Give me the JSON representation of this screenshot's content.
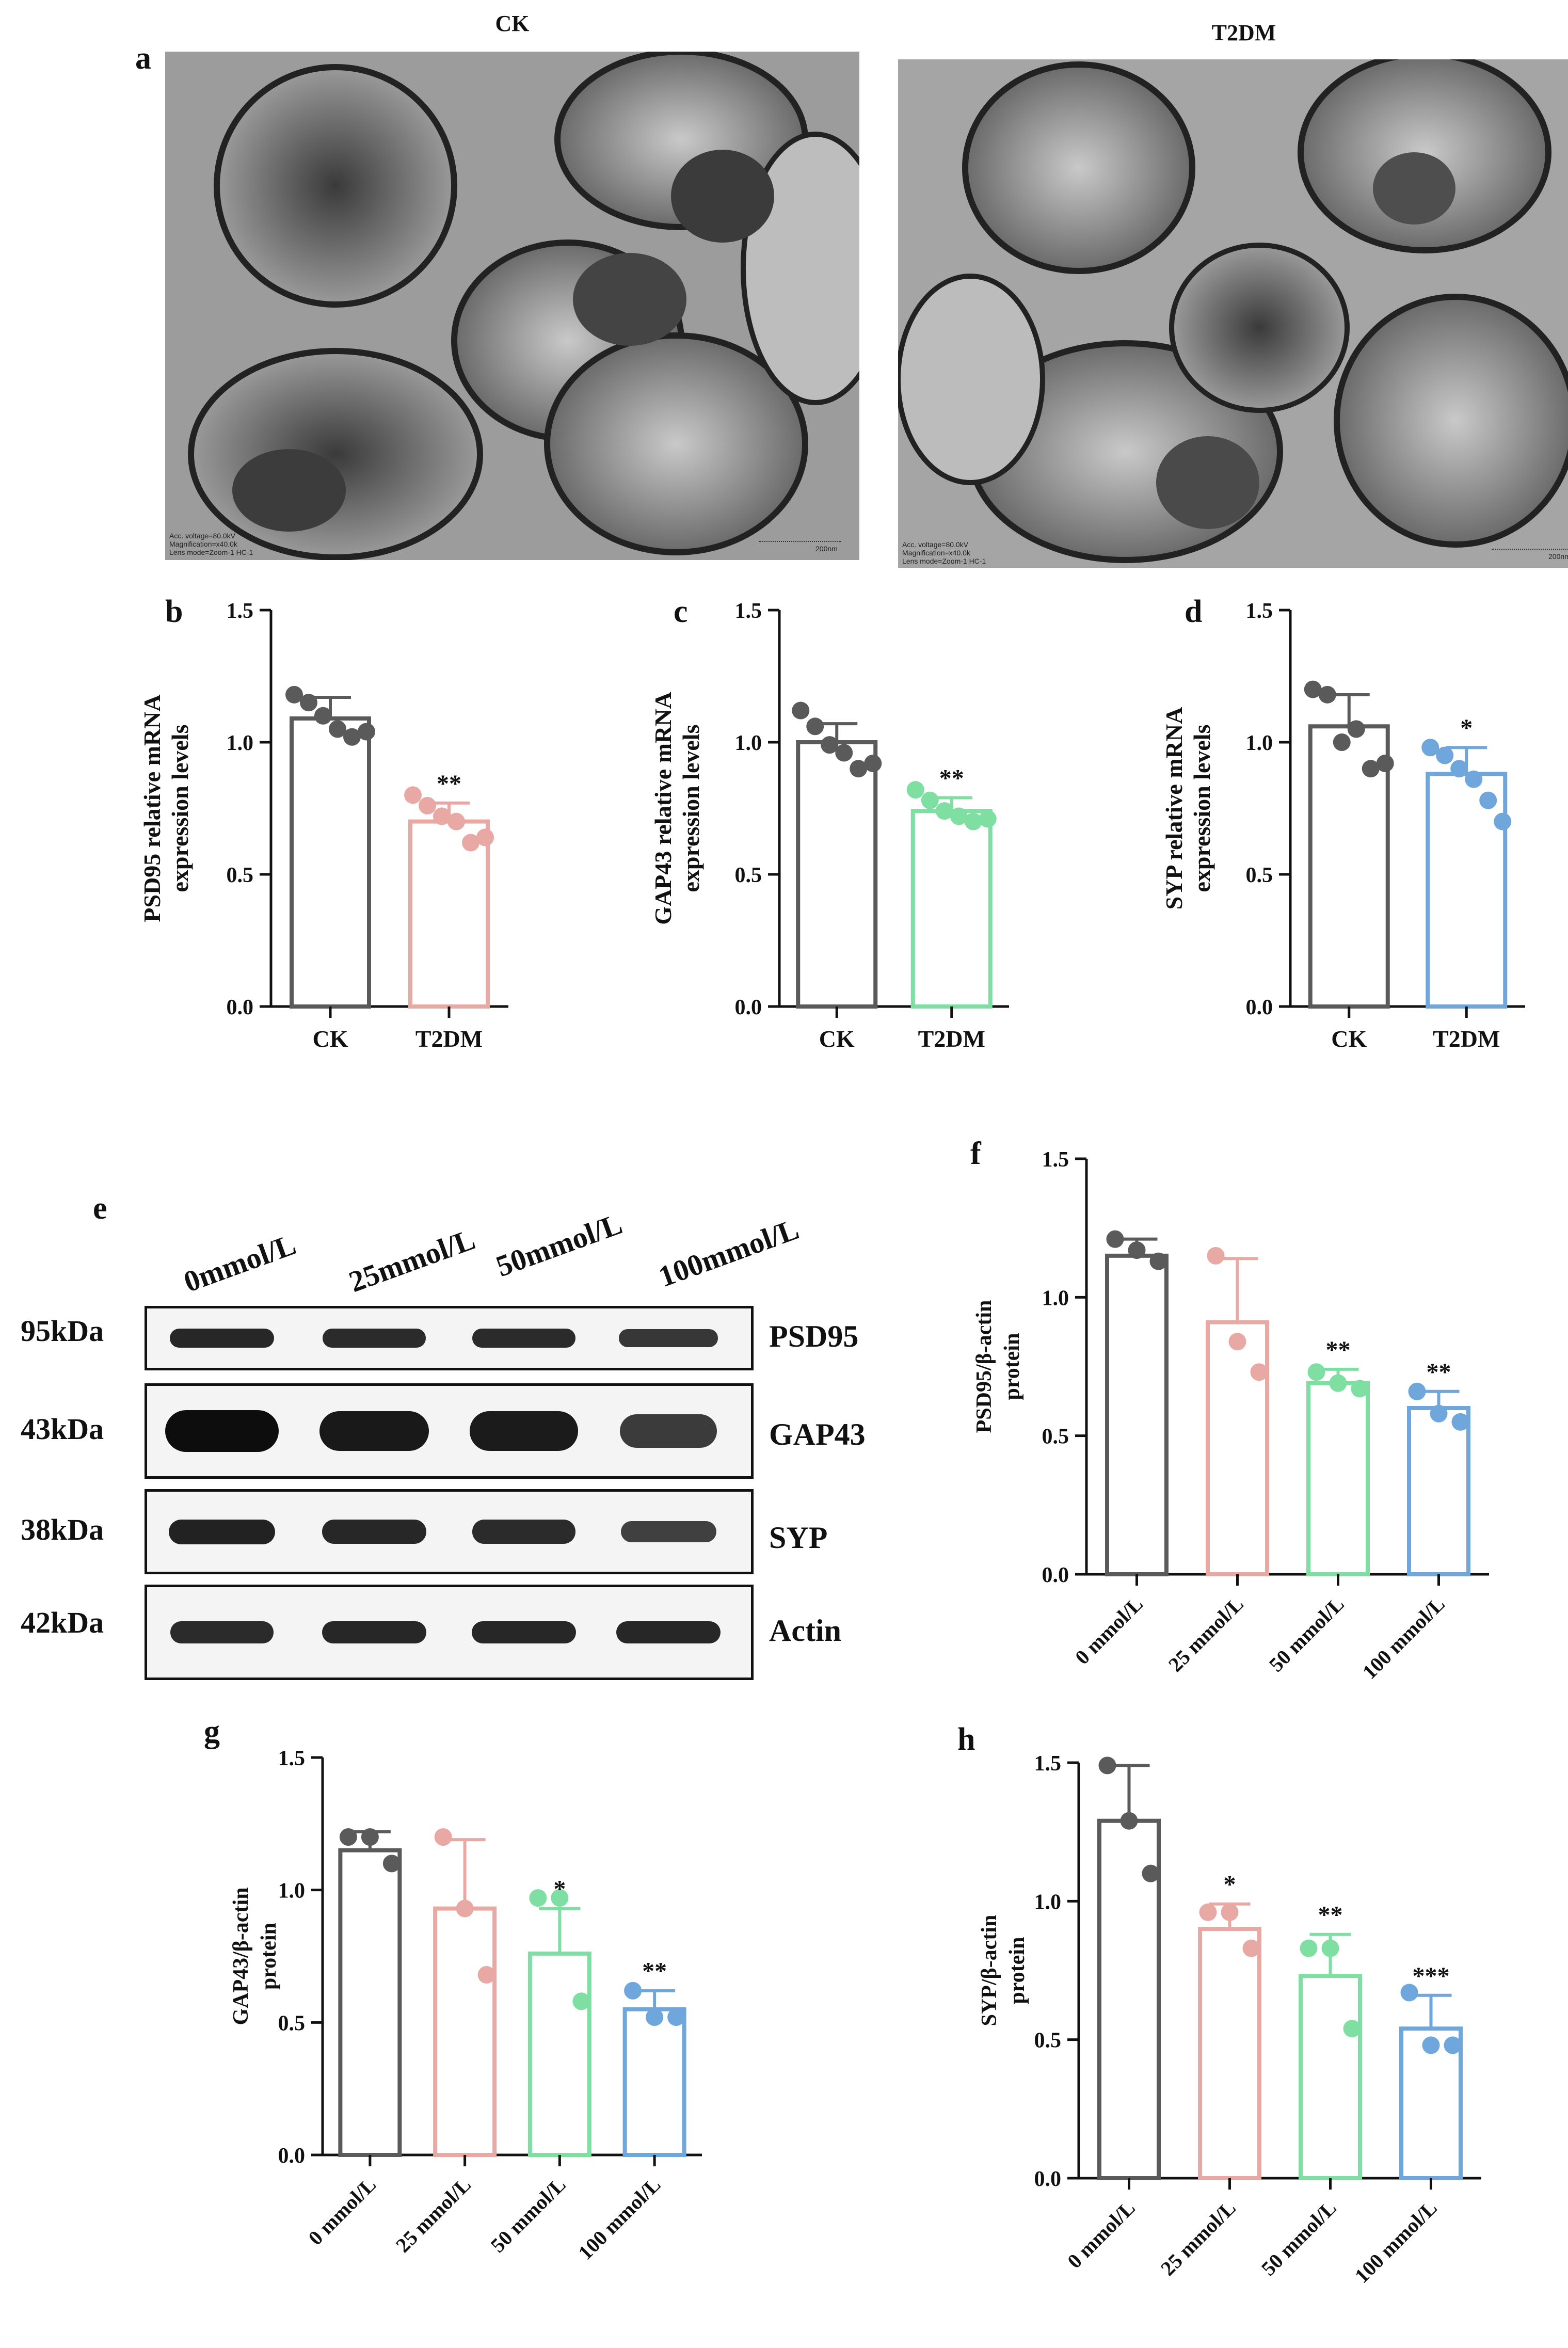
{
  "panel_a": {
    "label": "a",
    "images": [
      {
        "title": "CK",
        "info": [
          "Acc. voltage=80.0kV",
          "Magnification=x40.0k",
          "Lens mode=Zoom-1 HC-1"
        ],
        "scale_label": "200nm"
      },
      {
        "title": "T2DM",
        "info": [
          "Acc. voltage=80.0kV",
          "Magnification=x40.0k",
          "Lens mode=Zoom-1 HC-1"
        ],
        "scale_label": "200nm"
      }
    ]
  },
  "panel_e": {
    "label": "e",
    "lanes": [
      "0mmol/L",
      "25mmol/L",
      "50mmol/L",
      "100mmol/L"
    ],
    "bands": [
      {
        "kda": "95kDa",
        "protein": "PSD95",
        "intensity": [
          0.75,
          0.72,
          0.72,
          0.6
        ]
      },
      {
        "kda": "43kDa",
        "protein": "GAP43",
        "intensity": [
          1.0,
          0.88,
          0.86,
          0.55
        ]
      },
      {
        "kda": "38kDa",
        "protein": "SYP",
        "intensity": [
          0.8,
          0.75,
          0.72,
          0.5
        ]
      },
      {
        "kda": "42kDa",
        "protein": "Actin",
        "intensity": [
          0.72,
          0.75,
          0.75,
          0.75
        ]
      }
    ]
  },
  "colors": {
    "CK": "#5a5a5a",
    "pink": "#e8a9a4",
    "green": "#7fdfa3",
    "blue": "#6fa6db"
  },
  "chart_data": [
    {
      "id": "b",
      "type": "bar",
      "label": "b",
      "ylabel": [
        "PSD95 relative mRNA",
        "expression levels"
      ],
      "yticks": [
        "0.0",
        "0.5",
        "1.0",
        "1.5"
      ],
      "ylim": [
        0,
        1.5
      ],
      "categories": [
        "CK",
        "T2DM"
      ],
      "values": [
        1.09,
        0.7
      ],
      "errors": [
        0.08,
        0.07
      ],
      "points": [
        [
          1.18,
          1.15,
          1.1,
          1.05,
          1.02,
          1.04
        ],
        [
          0.8,
          0.76,
          0.72,
          0.7,
          0.62,
          0.64
        ]
      ],
      "colors": [
        "#5a5a5a",
        "#e8a9a4"
      ],
      "significance": [
        "",
        "**"
      ]
    },
    {
      "id": "c",
      "type": "bar",
      "label": "c",
      "ylabel": [
        "GAP43 relative mRNA",
        "expression levels"
      ],
      "yticks": [
        "0.0",
        "0.5",
        "1.0",
        "1.5"
      ],
      "ylim": [
        0,
        1.5
      ],
      "categories": [
        "CK",
        "T2DM"
      ],
      "values": [
        1.0,
        0.74
      ],
      "errors": [
        0.07,
        0.05
      ],
      "points": [
        [
          1.12,
          1.06,
          0.99,
          0.96,
          0.9,
          0.92
        ],
        [
          0.82,
          0.78,
          0.74,
          0.72,
          0.7,
          0.71
        ]
      ],
      "colors": [
        "#5a5a5a",
        "#7fdfa3"
      ],
      "significance": [
        "",
        "**"
      ]
    },
    {
      "id": "d",
      "type": "bar",
      "label": "d",
      "ylabel": [
        "SYP relative mRNA",
        "expression levels"
      ],
      "yticks": [
        "0.0",
        "0.5",
        "1.0",
        "1.5"
      ],
      "ylim": [
        0,
        1.5
      ],
      "categories": [
        "CK",
        "T2DM"
      ],
      "values": [
        1.06,
        0.88
      ],
      "errors": [
        0.12,
        0.1
      ],
      "points": [
        [
          1.2,
          1.18,
          1.0,
          1.05,
          0.9,
          0.92
        ],
        [
          0.98,
          0.95,
          0.9,
          0.86,
          0.78,
          0.7
        ]
      ],
      "colors": [
        "#5a5a5a",
        "#6fa6db"
      ],
      "significance": [
        "",
        "*"
      ]
    },
    {
      "id": "f",
      "type": "bar",
      "label": "f",
      "ylabel": [
        "PSD95/β-actin",
        "protein"
      ],
      "yticks": [
        "0.0",
        "0.5",
        "1.0",
        "1.5"
      ],
      "ylim": [
        0,
        1.5
      ],
      "categories": [
        "0 mmol/L",
        "25 mmol/L",
        "50 mmol/L",
        "100 mmol/L"
      ],
      "values": [
        1.15,
        0.91,
        0.69,
        0.6
      ],
      "errors": [
        0.06,
        0.23,
        0.05,
        0.06
      ],
      "points": [
        [
          1.21,
          1.17,
          1.13
        ],
        [
          1.15,
          0.84,
          0.73
        ],
        [
          0.73,
          0.69,
          0.67
        ],
        [
          0.66,
          0.58,
          0.55
        ]
      ],
      "colors": [
        "#5a5a5a",
        "#e8a9a4",
        "#7fdfa3",
        "#6fa6db"
      ],
      "significance": [
        "",
        "",
        "**",
        "**"
      ]
    },
    {
      "id": "g",
      "type": "bar",
      "label": "g",
      "ylabel": [
        "GAP43/β-actin",
        "protein"
      ],
      "yticks": [
        "0.0",
        "0.5",
        "1.0",
        "1.5"
      ],
      "ylim": [
        0,
        1.5
      ],
      "categories": [
        "0 mmol/L",
        "25 mmol/L",
        "50 mmol/L",
        "100 mmol/L"
      ],
      "values": [
        1.15,
        0.93,
        0.76,
        0.55
      ],
      "errors": [
        0.07,
        0.26,
        0.17,
        0.07
      ],
      "points": [
        [
          1.2,
          1.2,
          1.1
        ],
        [
          1.2,
          0.93,
          0.68
        ],
        [
          0.97,
          0.97,
          0.58
        ],
        [
          0.62,
          0.52,
          0.52
        ]
      ],
      "colors": [
        "#5a5a5a",
        "#e8a9a4",
        "#7fdfa3",
        "#6fa6db"
      ],
      "significance": [
        "",
        "",
        "*",
        "**"
      ]
    },
    {
      "id": "h",
      "type": "bar",
      "label": "h",
      "ylabel": [
        "SYP/β-actin",
        "protein"
      ],
      "yticks": [
        "0.0",
        "0.5",
        "1.0",
        "1.5"
      ],
      "ylim": [
        0,
        1.5
      ],
      "categories": [
        "0 mmol/L",
        "25 mmol/L",
        "50 mmol/L",
        "100 mmol/L"
      ],
      "values": [
        1.29,
        0.9,
        0.73,
        0.54
      ],
      "errors": [
        0.2,
        0.09,
        0.15,
        0.12
      ],
      "points": [
        [
          1.49,
          1.29,
          1.1
        ],
        [
          0.96,
          0.96,
          0.83
        ],
        [
          0.83,
          0.83,
          0.54
        ],
        [
          0.67,
          0.48,
          0.48
        ]
      ],
      "colors": [
        "#5a5a5a",
        "#e8a9a4",
        "#7fdfa3",
        "#6fa6db"
      ],
      "significance": [
        "",
        "*",
        "**",
        "***"
      ]
    }
  ]
}
